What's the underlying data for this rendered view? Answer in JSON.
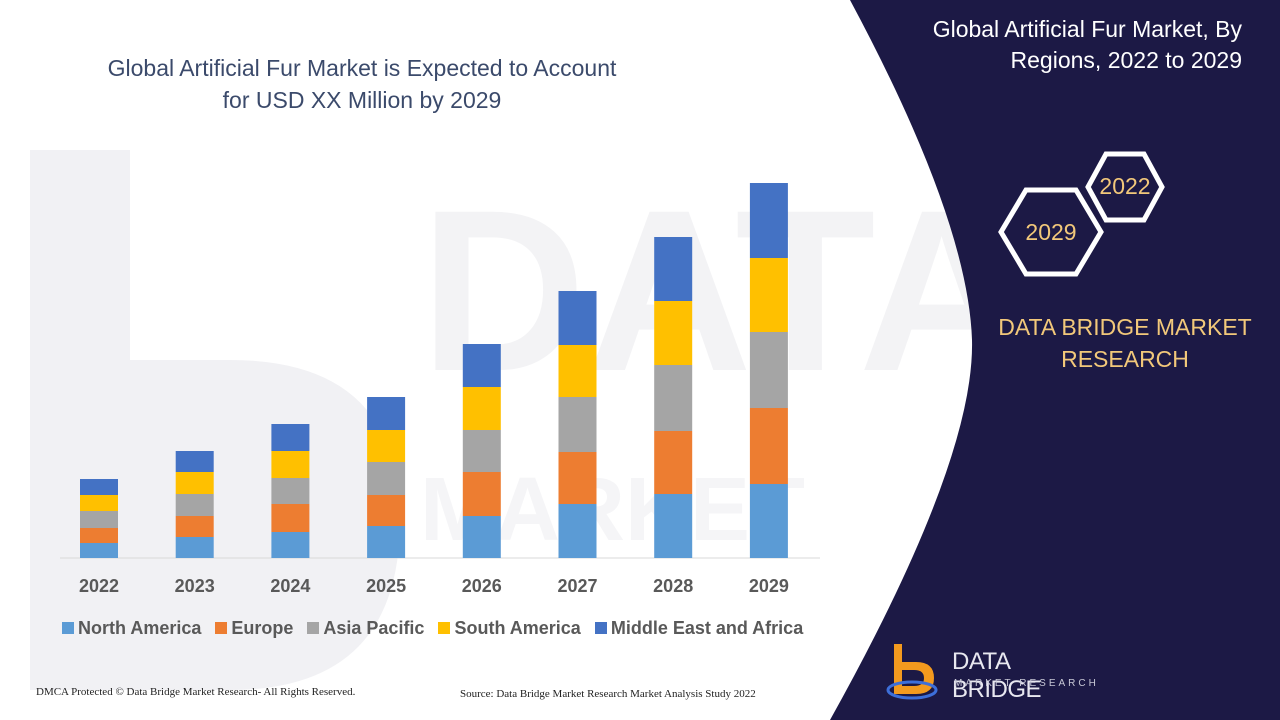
{
  "chart_title": "Global Artificial Fur Market is Expected to Account for USD XX Million by 2029",
  "panel": {
    "title": "Global Artificial Fur Market, By Regions, 2022 to 2029",
    "hex_front_label": "2029",
    "hex_back_label": "2022",
    "company": "DATA BRIDGE MARKET RESEARCH"
  },
  "footer": {
    "left": "DMCA Protected © Data Bridge Market Research- All Rights Reserved.",
    "right": "Source: Data Bridge Market Research Market Analysis Study 2022"
  },
  "logo": {
    "name": "DATA BRIDGE",
    "tagline": "MARKET RESEARCH"
  },
  "colors": {
    "panel_bg": "#1c1945",
    "accent_gold": "#f2c87a",
    "logo_orange": "#f39a1e"
  },
  "chart_data": {
    "type": "bar",
    "stacked": true,
    "title": "",
    "xlabel": "",
    "ylabel": "",
    "categories": [
      "2022",
      "2023",
      "2024",
      "2025",
      "2026",
      "2027",
      "2028",
      "2029"
    ],
    "ylim": [
      0,
      380
    ],
    "grid": false,
    "legend_position": "bottom",
    "series": [
      {
        "name": "North America",
        "color": "#5b9bd5",
        "values": [
          15,
          21,
          26,
          32,
          42,
          54,
          64,
          74
        ]
      },
      {
        "name": "Europe",
        "color": "#ed7d31",
        "values": [
          15,
          21,
          28,
          31,
          44,
          52,
          63,
          76
        ]
      },
      {
        "name": "Asia Pacific",
        "color": "#a5a5a5",
        "values": [
          17,
          22,
          26,
          33,
          42,
          55,
          66,
          76
        ]
      },
      {
        "name": "South America",
        "color": "#ffc000",
        "values": [
          16,
          22,
          27,
          32,
          43,
          52,
          64,
          74
        ]
      },
      {
        "name": "Middle East and Africa",
        "color": "#4472c4",
        "values": [
          16,
          21,
          27,
          33,
          43,
          54,
          64,
          75
        ]
      }
    ]
  }
}
